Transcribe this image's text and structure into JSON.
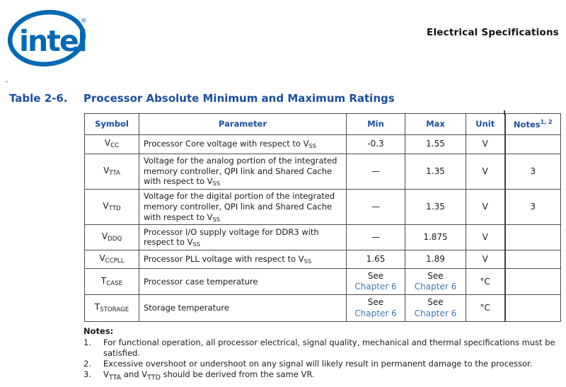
{
  "colors": {
    "intel_blue": "#0068B5",
    "heading_blue": "#1A4F9C",
    "link_blue": "#4076B4",
    "border_gray": "#4d4d4d",
    "body_text": "#1a1a1a"
  },
  "logo": {
    "brand": "intel",
    "registered": "®"
  },
  "header": {
    "right_title": "Electrical Specifications"
  },
  "title": {
    "label": "Table 2-6.",
    "text": "Processor Absolute Minimum and Maximum Ratings"
  },
  "table": {
    "headers": [
      {
        "label": "Symbol"
      },
      {
        "label": "Parameter"
      },
      {
        "label": "Min"
      },
      {
        "label": "Max"
      },
      {
        "label": "Unit"
      },
      {
        "label": "Notes",
        "sup": "1, 2"
      }
    ],
    "rows": [
      {
        "symbol": {
          "base": "V",
          "sub": "CC"
        },
        "parameter": [
          {
            "t": "Processor Core voltage with respect to V"
          },
          {
            "s": "SS"
          }
        ],
        "min": {
          "t": "-0.3"
        },
        "max": {
          "t": "1.55"
        },
        "unit": "V",
        "notes": ""
      },
      {
        "symbol": {
          "base": "V",
          "sub": "TTA"
        },
        "parameter": [
          {
            "t": "Voltage for the analog portion of the integrated memory controller, QPI link and Shared Cache with respect to V"
          },
          {
            "s": "SS"
          }
        ],
        "min": {
          "t": "—"
        },
        "max": {
          "t": "1.35"
        },
        "unit": "V",
        "notes": "3"
      },
      {
        "symbol": {
          "base": "V",
          "sub": "TTD"
        },
        "parameter": [
          {
            "t": "Voltage for the digital portion of the integrated memory controller, QPI link and Shared Cache with respect to V"
          },
          {
            "s": "SS"
          }
        ],
        "min": {
          "t": "—"
        },
        "max": {
          "t": "1.35"
        },
        "unit": "V",
        "notes": "3"
      },
      {
        "symbol": {
          "base": "V",
          "sub": "DDQ"
        },
        "parameter": [
          {
            "t": "Processor I/O supply voltage for DDR3 with respect to V"
          },
          {
            "s": "SS"
          }
        ],
        "min": {
          "t": "—"
        },
        "max": {
          "t": "1.875"
        },
        "unit": "V",
        "notes": ""
      },
      {
        "symbol": {
          "base": "V",
          "sub": "CCPLL"
        },
        "parameter": [
          {
            "t": "Processor PLL voltage with respect to V"
          },
          {
            "s": "SS"
          }
        ],
        "min": {
          "t": "1.65"
        },
        "max": {
          "t": "1.89"
        },
        "unit": "V",
        "notes": ""
      },
      {
        "symbol": {
          "base": "T",
          "sub": "CASE"
        },
        "parameter": [
          {
            "t": "Processor case temperature"
          }
        ],
        "min": {
          "see": "See",
          "link": "Chapter 6"
        },
        "max": {
          "see": "See",
          "link": "Chapter 6"
        },
        "unit": "°C",
        "notes": ""
      },
      {
        "symbol": {
          "base": "T",
          "sub": "STORAGE"
        },
        "parameter": [
          {
            "t": "Storage temperature"
          }
        ],
        "min": {
          "see": "See",
          "link": "Chapter 6"
        },
        "max": {
          "see": "See",
          "link": "Chapter 6"
        },
        "unit": "°C",
        "notes": ""
      }
    ]
  },
  "notes": {
    "heading": "Notes:",
    "items": [
      {
        "num": "1.",
        "segments": [
          {
            "t": "For functional operation, all processor electrical, signal quality, mechanical and thermal specifications must be satisfied."
          }
        ]
      },
      {
        "num": "2.",
        "segments": [
          {
            "t": "Excessive overshoot or undershoot on any signal will likely result in permanent damage to the processor."
          }
        ]
      },
      {
        "num": "3.",
        "segments": [
          {
            "t": "V"
          },
          {
            "s": "TTA"
          },
          {
            "t": " and V"
          },
          {
            "s": "TTD"
          },
          {
            "t": " should be derived from the same VR."
          }
        ]
      }
    ]
  }
}
